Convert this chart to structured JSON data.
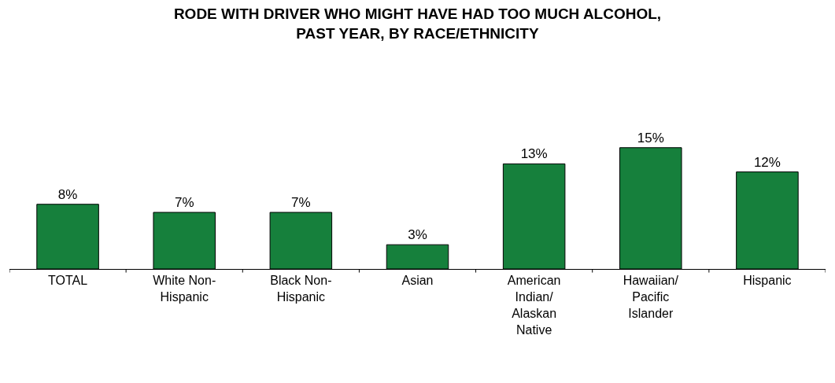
{
  "chart_data": {
    "type": "bar",
    "title": "RODE WITH DRIVER WHO MIGHT HAVE HAD TOO MUCH ALCOHOL, PAST YEAR, BY RACE/ETHNICITY",
    "categories": [
      "TOTAL",
      "White Non-Hispanic",
      "Black Non-Hispanic",
      "Asian",
      "American Indian/ Alaskan Native",
      "Hawaiian/ Pacific Islander",
      "Hispanic"
    ],
    "values": [
      8,
      7,
      7,
      3,
      13,
      15,
      12
    ],
    "value_labels": [
      "8%",
      "7%",
      "7%",
      "3%",
      "13%",
      "15%",
      "12%"
    ],
    "color": "#16803c",
    "legend": false
  }
}
